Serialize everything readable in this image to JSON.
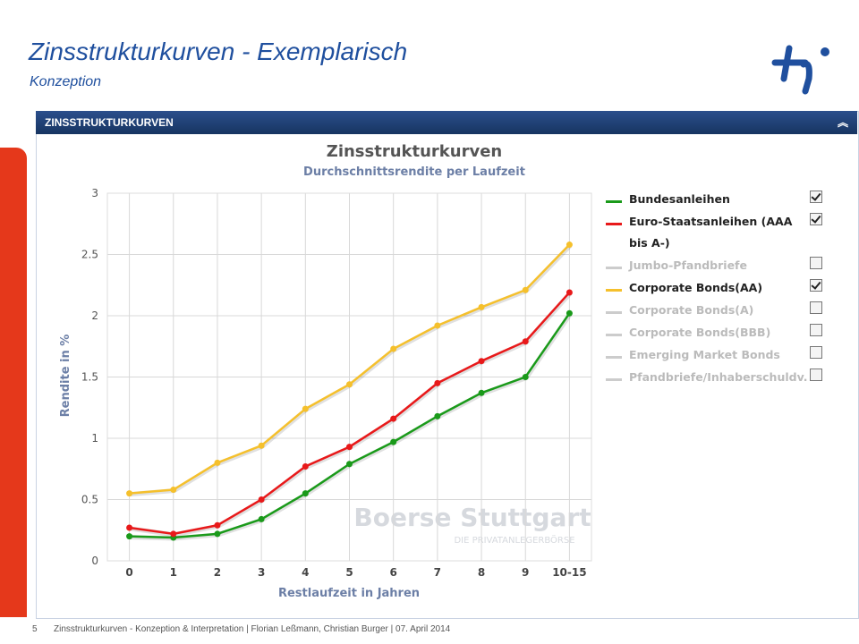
{
  "slide": {
    "title": "Zinsstrukturkurven - Exemplarisch",
    "subtitle": "Konzeption",
    "panel_title": "ZINSSTRUKTURKURVEN",
    "page_number": "5",
    "footer": "Zinsstrukturkurven - Konzeption & Interpretation | Florian Leßmann, Christian Burger | 07. April 2014"
  },
  "chart_data": {
    "type": "line",
    "title": "Zinsstrukturkurven",
    "subtitle": "Durchschnittsrendite per Laufzeit",
    "y_label": "Rendite in %",
    "x_label": "Restlaufzeit in Jahren",
    "watermark": [
      "Boerse Stuttgart",
      "DIE PRIVATANLEGERBÖRSE"
    ],
    "categories": [
      "0",
      "1",
      "2",
      "3",
      "4",
      "5",
      "6",
      "7",
      "8",
      "9",
      "10-15"
    ],
    "ylim": [
      0,
      3
    ],
    "yticks": [
      0,
      0.5,
      1,
      1.5,
      2,
      2.5,
      3
    ],
    "grid": true,
    "legend": "right",
    "series": [
      {
        "name": "Bundesanleihen",
        "color": "#1a9a1a",
        "visible": true,
        "values": [
          0.2,
          0.19,
          0.22,
          0.34,
          0.55,
          0.79,
          0.97,
          1.18,
          1.37,
          1.5,
          2.02
        ]
      },
      {
        "name": "Euro-Staatsanleihen (AAA bis A-)",
        "color": "#e8191a",
        "visible": true,
        "values": [
          0.27,
          0.22,
          0.29,
          0.5,
          0.77,
          0.93,
          1.16,
          1.45,
          1.63,
          1.79,
          2.19
        ]
      },
      {
        "name": "Jumbo-Pfandbriefe",
        "color": "#cccccc",
        "visible": false
      },
      {
        "name": "Corporate Bonds(AA)",
        "color": "#f5c02c",
        "visible": true,
        "values": [
          0.55,
          0.58,
          0.8,
          0.94,
          1.24,
          1.44,
          1.73,
          1.92,
          2.07,
          2.21,
          2.58
        ]
      },
      {
        "name": "Corporate Bonds(A)",
        "color": "#cccccc",
        "visible": false
      },
      {
        "name": "Corporate Bonds(BBB)",
        "color": "#cccccc",
        "visible": false
      },
      {
        "name": "Emerging Market Bonds",
        "color": "#cccccc",
        "visible": false
      },
      {
        "name": "Pfandbriefe/Inhaberschuldv.",
        "color": "#cccccc",
        "visible": false
      }
    ]
  }
}
